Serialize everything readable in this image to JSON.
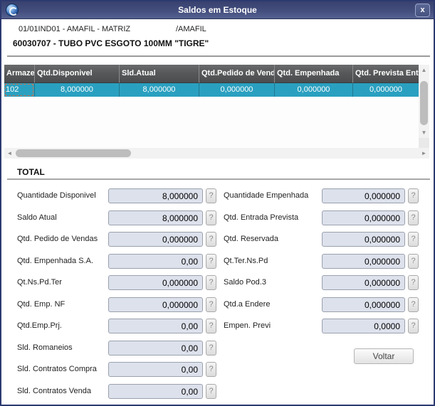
{
  "window": {
    "title": "Saldos em Estoque",
    "close_label": "x"
  },
  "header": {
    "branch_line": "01/01IND01 - AMAFIL - MATRIZ",
    "branch_suffix": "/AMAFIL",
    "product_line": "60030707 - TUBO PVC ESGOTO 100MM \"TIGRE\""
  },
  "table": {
    "columns": [
      "Armaze",
      "Qtd.Disponivel",
      "Sld.Atual",
      "Qtd.Pedido de Vend",
      "Qtd. Empenhada",
      "Qtd. Prevista Ent"
    ],
    "rows": [
      [
        "102",
        "8,000000",
        "8,000000",
        "0,000000",
        "0,000000",
        "0,000000"
      ]
    ]
  },
  "scrollbar": {
    "up": "▲",
    "down": "▼",
    "left": "◄",
    "right": "►"
  },
  "total": {
    "title": "TOTAL",
    "help_label": "?",
    "left": [
      {
        "label": "Quantidade Disponivel",
        "value": "8,000000"
      },
      {
        "label": "Saldo Atual",
        "value": "8,000000"
      },
      {
        "label": "Qtd. Pedido de Vendas",
        "value": "0,000000"
      },
      {
        "label": "Qtd. Empenhada S.A.",
        "value": "0,00"
      },
      {
        "label": "Qt.Ns.Pd.Ter",
        "value": "0,000000"
      },
      {
        "label": "Qtd. Emp. NF",
        "value": "0,000000"
      },
      {
        "label": "Qtd.Emp.Prj.",
        "value": "0,00"
      },
      {
        "label": "Sld. Romaneios",
        "value": "0,00"
      },
      {
        "label": "Sld. Contratos Compra",
        "value": "0,00"
      },
      {
        "label": "Sld. Contratos Venda",
        "value": "0,00"
      }
    ],
    "right": [
      {
        "label": "Quantidade Empenhada",
        "value": "0,000000"
      },
      {
        "label": "Qtd. Entrada Prevista",
        "value": "0,000000"
      },
      {
        "label": "Qtd. Reservada",
        "value": "0,000000"
      },
      {
        "label": "Qt.Ter.Ns.Pd",
        "value": "0,000000"
      },
      {
        "label": "Saldo Pod.3",
        "value": "0,000000"
      },
      {
        "label": "Qtd.a Endere",
        "value": "0,000000"
      },
      {
        "label": "Empen. Previ",
        "value": "0,0000"
      }
    ],
    "back_button": "Voltar"
  },
  "colors": {
    "titlebar": "#434e7e",
    "grid_header": "#57585a",
    "selected_row": "#2aa0c0",
    "field_bg": "#dde1ec",
    "dialog_border": "#2c3a70"
  }
}
